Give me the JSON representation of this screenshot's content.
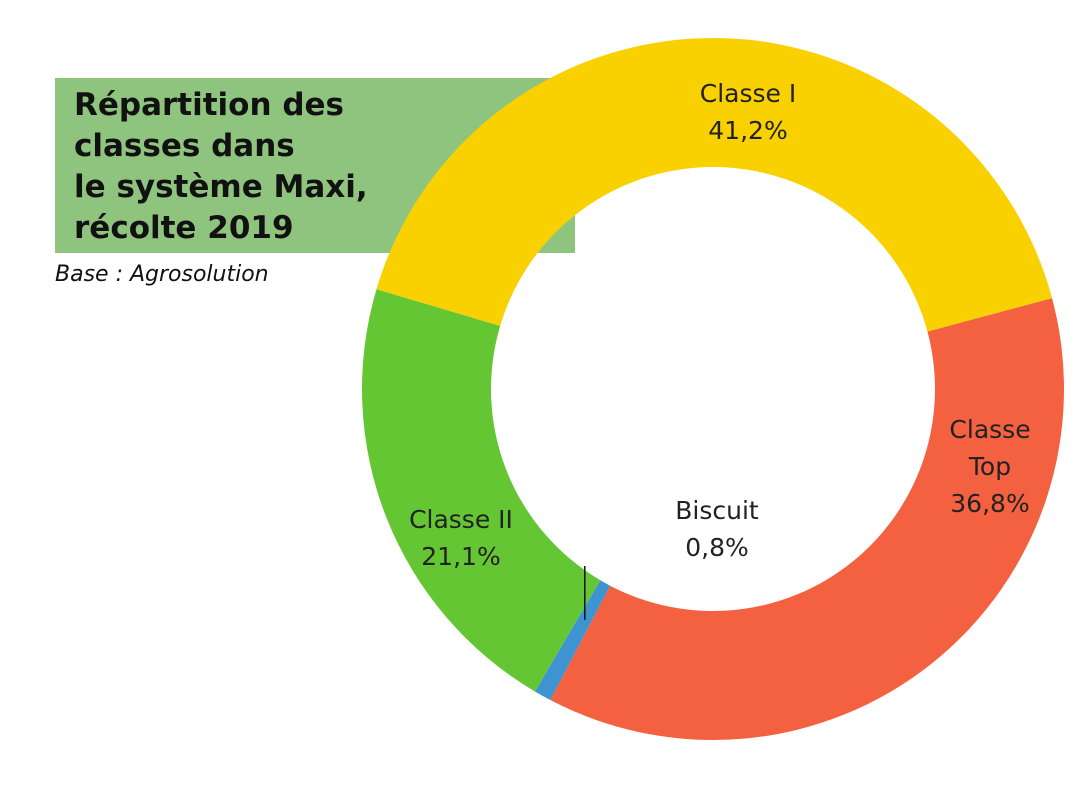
{
  "chart_data": {
    "type": "pie",
    "subtype": "donut",
    "title": "Répartition des\nclasses dans\nle système Maxi,\nrécolte 2019",
    "subtitle": "Base : Agrosolution",
    "slices": [
      {
        "name": "Classe Top",
        "value": 36.8,
        "value_label": "36,8%",
        "color": "#f46141"
      },
      {
        "name": "Biscuit",
        "value": 0.8,
        "value_label": "0,8%",
        "color": "#3e94d1"
      },
      {
        "name": "Classe II",
        "value": 21.1,
        "value_label": "21,1%",
        "color": "#65c634"
      },
      {
        "name": "Classe I",
        "value": 41.2,
        "value_label": "41,2%",
        "color": "#f9d100"
      }
    ],
    "title_box_color": "#8fc47f"
  }
}
